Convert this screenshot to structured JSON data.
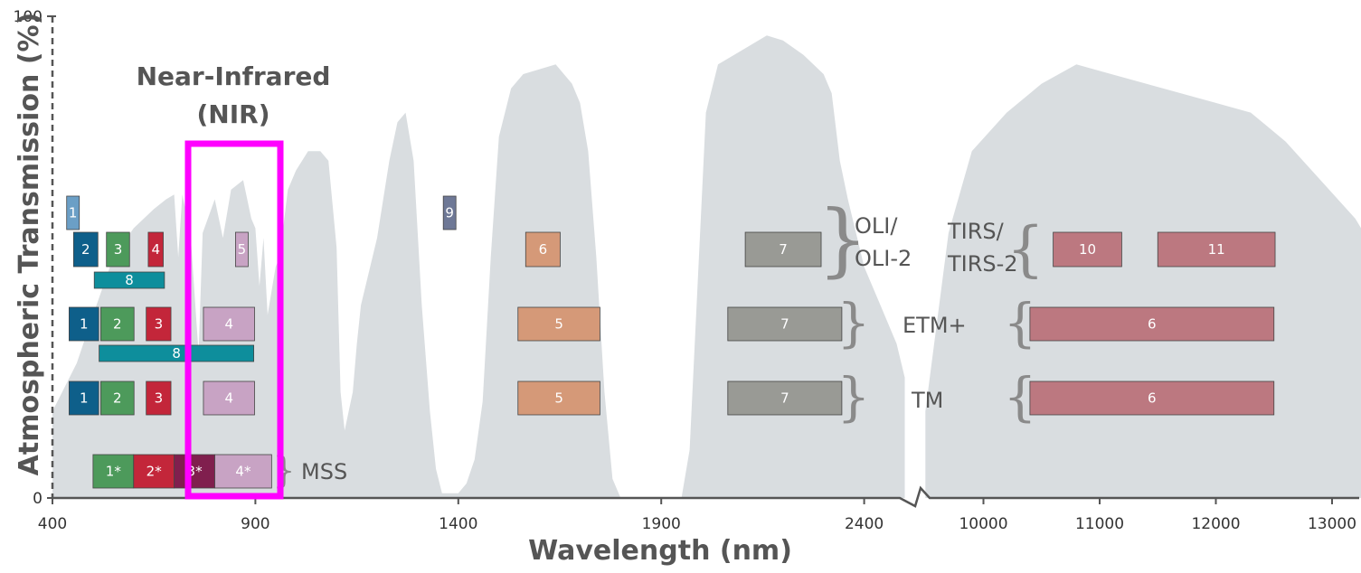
{
  "chart_data": {
    "type": "area",
    "xlabel": "Wavelength (nm)",
    "ylabel": "Atmospheric Transmission (%)",
    "ylim": [
      0,
      100
    ],
    "y_ticks": [
      "100",
      "0"
    ],
    "x_ticks": [
      "400",
      "900",
      "1400",
      "1900",
      "2400",
      "10000",
      "11000",
      "12000",
      "13000"
    ],
    "region_label": [
      "Near-Infrared",
      "(NIR)"
    ],
    "highlight_color": "#ff00ff",
    "transmission_color": "#d9dde0",
    "transmission": {
      "segment1_nm": [
        [
          400,
          18
        ],
        [
          430,
          23
        ],
        [
          460,
          28
        ],
        [
          500,
          38
        ],
        [
          550,
          50
        ],
        [
          600,
          56
        ],
        [
          650,
          60
        ],
        [
          680,
          62
        ],
        [
          700,
          63
        ],
        [
          710,
          50
        ],
        [
          720,
          63
        ],
        [
          740,
          55
        ],
        [
          760,
          30
        ],
        [
          770,
          55
        ],
        [
          800,
          62
        ],
        [
          820,
          54
        ],
        [
          840,
          64
        ],
        [
          870,
          66
        ],
        [
          890,
          58
        ],
        [
          900,
          56
        ],
        [
          910,
          44
        ],
        [
          920,
          54
        ],
        [
          930,
          38
        ],
        [
          950,
          48
        ],
        [
          960,
          50
        ],
        [
          980,
          64
        ],
        [
          1000,
          68
        ],
        [
          1030,
          72
        ],
        [
          1060,
          72
        ],
        [
          1080,
          70
        ],
        [
          1100,
          52
        ],
        [
          1110,
          22
        ],
        [
          1120,
          14
        ],
        [
          1140,
          22
        ],
        [
          1150,
          32
        ],
        [
          1160,
          40
        ],
        [
          1200,
          54
        ],
        [
          1230,
          70
        ],
        [
          1250,
          78
        ],
        [
          1270,
          80
        ],
        [
          1290,
          70
        ],
        [
          1310,
          40
        ],
        [
          1330,
          18
        ],
        [
          1345,
          6
        ],
        [
          1360,
          1
        ],
        [
          1400,
          1
        ],
        [
          1420,
          3
        ],
        [
          1440,
          8
        ],
        [
          1460,
          20
        ],
        [
          1480,
          50
        ],
        [
          1500,
          75
        ],
        [
          1530,
          85
        ],
        [
          1560,
          88
        ],
        [
          1600,
          89
        ],
        [
          1640,
          90
        ],
        [
          1680,
          86
        ],
        [
          1700,
          82
        ],
        [
          1720,
          72
        ],
        [
          1740,
          50
        ],
        [
          1760,
          22
        ],
        [
          1780,
          4
        ],
        [
          1800,
          0
        ],
        [
          1950,
          0
        ],
        [
          1970,
          10
        ],
        [
          1990,
          45
        ],
        [
          2010,
          80
        ],
        [
          2040,
          90
        ],
        [
          2080,
          92
        ],
        [
          2120,
          94
        ],
        [
          2160,
          96
        ],
        [
          2200,
          95
        ],
        [
          2250,
          92
        ],
        [
          2300,
          88
        ],
        [
          2320,
          84
        ],
        [
          2340,
          70
        ],
        [
          2360,
          62
        ],
        [
          2380,
          55
        ],
        [
          2400,
          48
        ],
        [
          2440,
          40
        ],
        [
          2480,
          32
        ],
        [
          2500,
          25
        ]
      ],
      "segment2_um": [
        [
          9.5,
          18
        ],
        [
          9.7,
          55
        ],
        [
          9.9,
          72
        ],
        [
          10.2,
          80
        ],
        [
          10.5,
          86
        ],
        [
          10.8,
          90
        ],
        [
          11.1,
          88
        ],
        [
          11.4,
          86
        ],
        [
          11.7,
          84
        ],
        [
          12.0,
          82
        ],
        [
          12.3,
          80
        ],
        [
          12.6,
          74
        ],
        [
          12.9,
          66
        ],
        [
          13.2,
          58
        ],
        [
          13.4,
          50
        ]
      ]
    },
    "sensors": [
      {
        "name": "OLI/ OLI-2",
        "lines": [
          "OLI/",
          "OLI-2"
        ],
        "bands": [
          {
            "label": "1",
            "range": [
              435,
              451
            ],
            "color": "#6b9fc6",
            "row": "oli_short"
          },
          {
            "label": "9",
            "range": [
              1363,
              1384
            ],
            "color": "#6e7896",
            "row": "oli_short"
          },
          {
            "label": "2",
            "range": [
              452,
              512
            ],
            "color": "#0e5f8a",
            "row": "oli"
          },
          {
            "label": "3",
            "range": [
              533,
              590
            ],
            "color": "#4d9a5b",
            "row": "oli"
          },
          {
            "label": "4",
            "range": [
              636,
              673
            ],
            "color": "#c3263a",
            "row": "oli"
          },
          {
            "label": "5",
            "range": [
              851,
              879
            ],
            "color": "#c8a3c4",
            "row": "oli"
          },
          {
            "label": "6",
            "range": [
              1566,
              1651
            ],
            "color": "#d59978",
            "row": "oli"
          },
          {
            "label": "7",
            "range": [
              2107,
              2294
            ],
            "color": "#999a95",
            "row": "oli"
          },
          {
            "label": "8",
            "range": [
              503,
              676
            ],
            "color": "#0e8e9c",
            "row": "oli_pan"
          }
        ]
      },
      {
        "name": "TIRS/ TIRS-2",
        "lines": [
          "TIRS/",
          "TIRS-2"
        ],
        "bands": [
          {
            "label": "10",
            "range_um": [
              10.6,
              11.19
            ],
            "color": "#bc7880",
            "row": "oli"
          },
          {
            "label": "11",
            "range_um": [
              11.5,
              12.51
            ],
            "color": "#bc7880",
            "row": "oli"
          }
        ]
      },
      {
        "name": "ETM+",
        "bands": [
          {
            "label": "1",
            "range": [
              441,
              514
            ],
            "color": "#0e5f8a",
            "row": "etm"
          },
          {
            "label": "2",
            "range": [
              519,
              601
            ],
            "color": "#4d9a5b",
            "row": "etm"
          },
          {
            "label": "3",
            "range": [
              631,
              692
            ],
            "color": "#c3263a",
            "row": "etm"
          },
          {
            "label": "4",
            "range": [
              772,
              898
            ],
            "color": "#c8a3c4",
            "row": "etm"
          },
          {
            "label": "5",
            "range": [
              1547,
              1749
            ],
            "color": "#d59978",
            "row": "etm"
          },
          {
            "label": "7",
            "range": [
              2064,
              2345
            ],
            "color": "#999a95",
            "row": "etm"
          },
          {
            "label": "6",
            "range_um": [
              10.4,
              12.5
            ],
            "color": "#bc7880",
            "row": "etm"
          },
          {
            "label": "8",
            "range": [
              515,
              896
            ],
            "color": "#0e8e9c",
            "row": "etm_pan"
          }
        ]
      },
      {
        "name": "TM",
        "bands": [
          {
            "label": "1",
            "range": [
              441,
              514
            ],
            "color": "#0e5f8a",
            "row": "tm"
          },
          {
            "label": "2",
            "range": [
              519,
              601
            ],
            "color": "#4d9a5b",
            "row": "tm"
          },
          {
            "label": "3",
            "range": [
              631,
              692
            ],
            "color": "#c3263a",
            "row": "tm"
          },
          {
            "label": "4",
            "range": [
              772,
              898
            ],
            "color": "#c8a3c4",
            "row": "tm"
          },
          {
            "label": "5",
            "range": [
              1547,
              1749
            ],
            "color": "#d59978",
            "row": "tm"
          },
          {
            "label": "7",
            "range": [
              2064,
              2345
            ],
            "color": "#999a95",
            "row": "tm"
          },
          {
            "label": "6",
            "range_um": [
              10.4,
              12.5
            ],
            "color": "#bc7880",
            "row": "tm"
          }
        ]
      },
      {
        "name": "MSS",
        "bands": [
          {
            "label": "1*",
            "range": [
              500,
              600
            ],
            "color": "#4d9a5b",
            "row": "mss"
          },
          {
            "label": "2*",
            "range": [
              600,
              700
            ],
            "color": "#c3263a",
            "row": "mss"
          },
          {
            "label": "3*",
            "range": [
              700,
              800
            ],
            "color": "#801f4e",
            "row": "mss"
          },
          {
            "label": "4*",
            "range": [
              800,
              940
            ],
            "color": "#c8a3c4",
            "row": "mss"
          }
        ]
      }
    ]
  }
}
